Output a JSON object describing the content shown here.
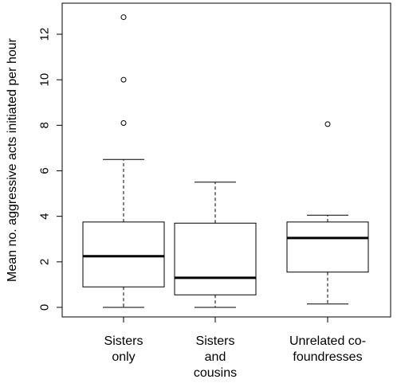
{
  "chart_data": {
    "type": "box",
    "title": "",
    "xlabel": "",
    "ylabel": "Mean no. aggressive acts initiated per hour",
    "ylim": [
      -0.4,
      13.2
    ],
    "yticks": [
      0,
      2,
      4,
      6,
      8,
      10,
      12
    ],
    "grid": false,
    "legend": "none",
    "categories": [
      {
        "lines": [
          "Sisters",
          "only"
        ]
      },
      {
        "lines": [
          "Sisters",
          "and",
          "cousins"
        ]
      },
      {
        "lines": [
          "Unrelated co-",
          "foundresses"
        ]
      }
    ],
    "boxes": [
      {
        "whisker_low": 0.0,
        "q1": 0.9,
        "median": 2.25,
        "q3": 3.75,
        "whisker_high": 6.5,
        "outliers": [
          8.1,
          10.0,
          12.75
        ]
      },
      {
        "whisker_low": 0.0,
        "q1": 0.55,
        "median": 1.3,
        "q3": 3.7,
        "whisker_high": 5.5,
        "outliers": []
      },
      {
        "whisker_low": 0.15,
        "q1": 1.55,
        "median": 3.05,
        "q3": 3.75,
        "whisker_high": 4.05,
        "outliers": [
          8.05
        ]
      }
    ],
    "colors": {
      "line": "#000000",
      "box_fill": "#ffffff"
    }
  }
}
